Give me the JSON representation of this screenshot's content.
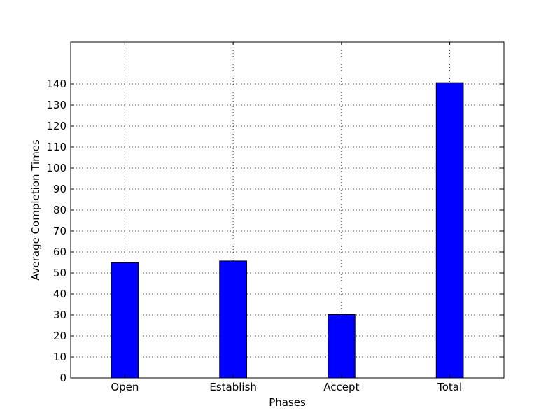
{
  "chart_data": {
    "type": "bar",
    "categories": [
      "Open",
      "Establish",
      "Accept",
      "Total"
    ],
    "values": [
      54.9,
      55.7,
      30.2,
      140.6
    ],
    "title": "",
    "xlabel": "Phases",
    "ylabel": "Average Completion Times",
    "ylim": [
      0,
      160
    ],
    "yticks": [
      0,
      10,
      20,
      30,
      40,
      50,
      60,
      70,
      80,
      90,
      100,
      110,
      120,
      130,
      140
    ],
    "grid": true,
    "legend": "none",
    "bar_color": "#0000ff",
    "bar_edge_color": "#000000"
  }
}
